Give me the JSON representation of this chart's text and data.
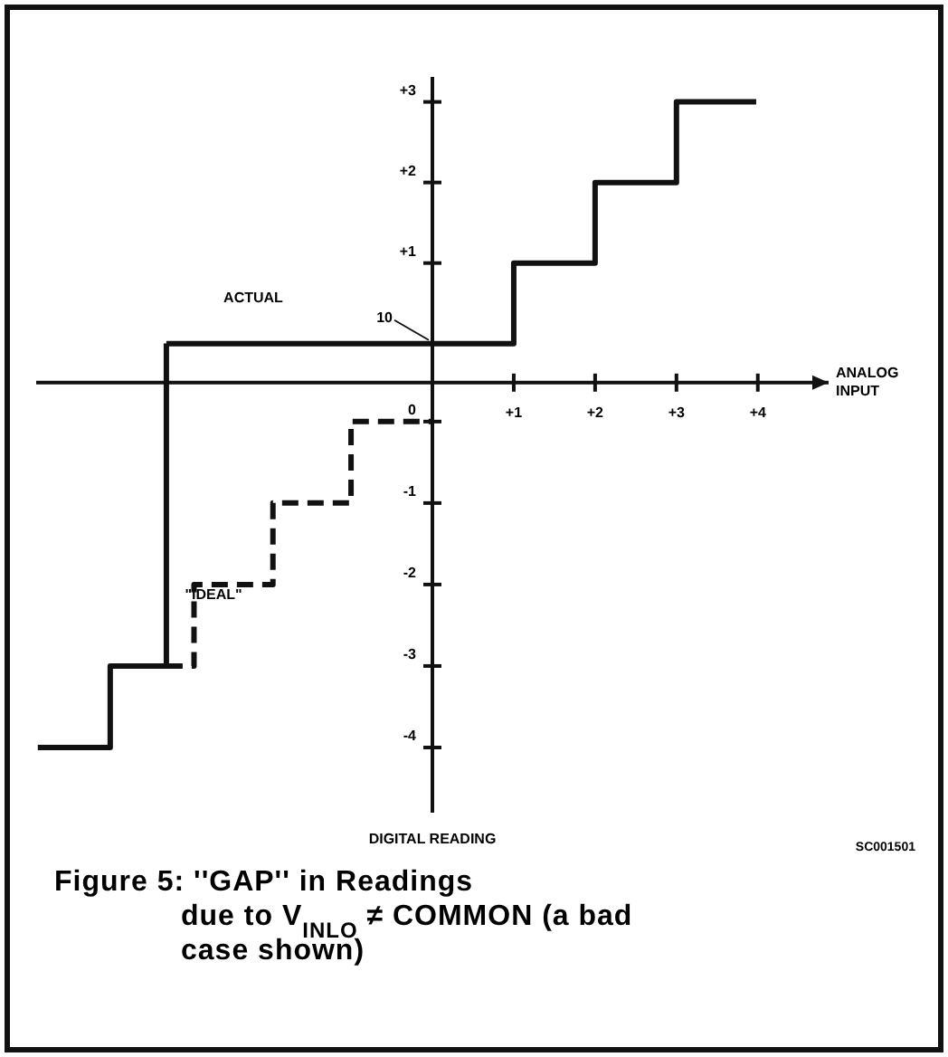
{
  "chart_data": {
    "type": "step",
    "title": "Figure 5: ''GAP'' in Readings due to V$_{INLO}$ ≠ COMMON (a bad case shown)",
    "xlabel": "ANALOG INPUT",
    "xlim": [
      -4.87,
      4.87
    ],
    "ylim": [
      -5.82,
      3.31
    ],
    "y2lim": [
      -4.8,
      4.23
    ],
    "xticks": [
      {
        "value": 1,
        "label": "+1"
      },
      {
        "value": 2,
        "label": "+2"
      },
      {
        "value": 3,
        "label": "+3"
      },
      {
        "value": 4,
        "label": "+4"
      }
    ],
    "yticks": [
      {
        "value": 3,
        "label": "+3"
      },
      {
        "value": 2,
        "label": "+2"
      },
      {
        "value": 1,
        "label": "+1"
      }
    ],
    "y2ticks": [
      0,
      -1,
      -2,
      -3,
      -4
    ],
    "series": [
      {
        "color": "#111111",
        "line_style": "solid",
        "x": [
          -3.27,
          1,
          2,
          3,
          3.98
        ],
        "values": [
          0,
          1,
          2,
          3,
          3
        ]
      },
      {
        "color": "#111111",
        "line_style": "solid",
        "axis": "y2",
        "x": [
          -4.85,
          -3.96,
          -3.27
        ],
        "values": [
          -4,
          -3,
          0.96
        ]
      },
      {
        "color": "#111111",
        "line_style": "dashed",
        "axis": "y2",
        "x": [
          -3.27,
          -2.93,
          -1.96,
          -1,
          0
        ],
        "values": [
          -3,
          -2,
          -1,
          0,
          0
        ]
      }
    ],
    "annotations": [
      "ACTUAL",
      "\"IDEAL\"",
      "DIGITAL READING",
      "SC001501",
      {
        "text": "10",
        "x": 0,
        "y": 0
      }
    ],
    "grid": false
  }
}
